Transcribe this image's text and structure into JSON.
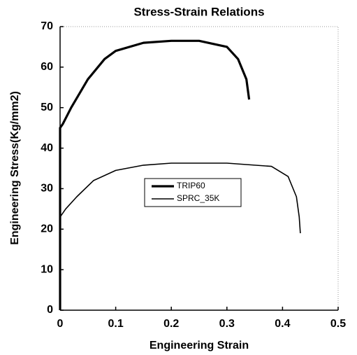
{
  "chart_data": {
    "type": "line",
    "title": "Stress-Strain Relations",
    "xlabel": "Engineering Strain",
    "ylabel": "Engineering Stress(Kg/mm2)",
    "xlim": [
      0,
      0.5
    ],
    "xticks": [
      0,
      0.1,
      0.2,
      0.3,
      0.4,
      0.5
    ],
    "ylim": [
      0,
      70
    ],
    "yticks": [
      0,
      10,
      20,
      30,
      40,
      50,
      60,
      70
    ],
    "legend": "center",
    "series": [
      {
        "name": "TRIP60",
        "color": "#000000",
        "width": 3.2,
        "x": [
          0,
          0,
          0.005,
          0.02,
          0.05,
          0.08,
          0.1,
          0.15,
          0.2,
          0.25,
          0.3,
          0.32,
          0.335,
          0.34
        ],
        "values": [
          0,
          45,
          46,
          50,
          57,
          62,
          64,
          66,
          66.5,
          66.5,
          65,
          62,
          57,
          52
        ]
      },
      {
        "name": "SPRC_35K",
        "color": "#000000",
        "width": 1.6,
        "x": [
          0,
          0,
          0.01,
          0.03,
          0.06,
          0.1,
          0.15,
          0.2,
          0.3,
          0.38,
          0.41,
          0.425,
          0.43,
          0.432
        ],
        "values": [
          0,
          23,
          25,
          28,
          32,
          34.5,
          35.8,
          36.3,
          36.3,
          35.5,
          33,
          28,
          23,
          19
        ]
      }
    ]
  }
}
